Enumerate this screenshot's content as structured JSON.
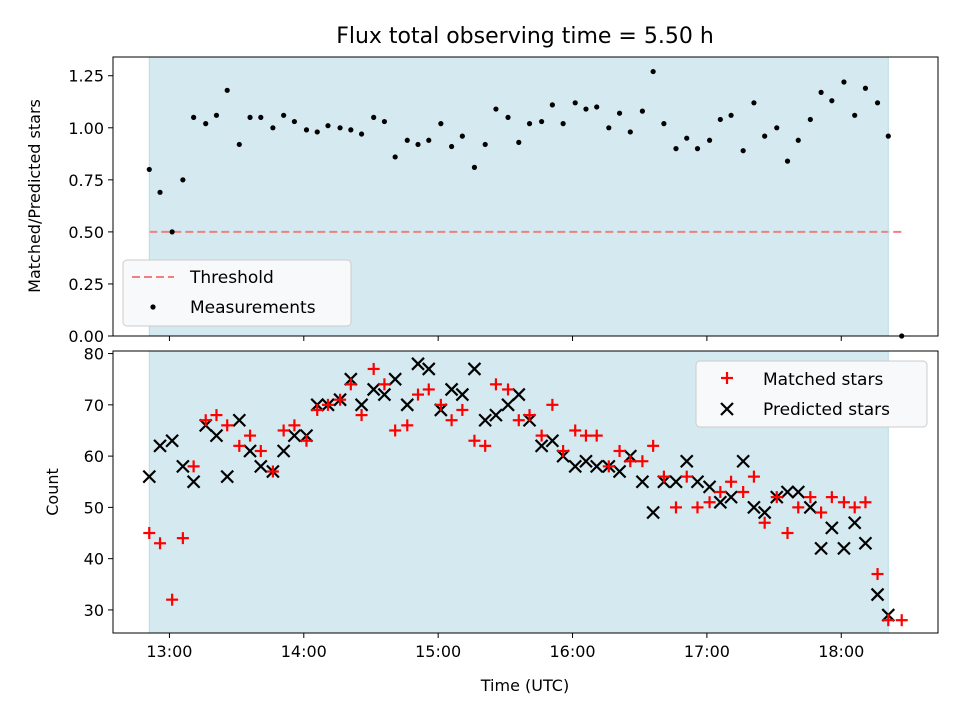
{
  "chart_data": [
    {
      "type": "scatter",
      "title": "Flux total observing time = 5.50 h",
      "xlabel": "",
      "ylabel": "Matched/Predicted stars",
      "ylim": [
        0,
        1.34
      ],
      "yticks": [
        "0.00",
        "0.25",
        "0.50",
        "0.75",
        "1.00",
        "1.25"
      ],
      "shaded_span_hours": [
        12.85,
        18.35
      ],
      "shade_color": "#d4eaf0",
      "legend": {
        "placement": "lower-left",
        "entries": [
          "Threshold",
          "Measurements"
        ]
      },
      "threshold": {
        "name": "Threshold",
        "y": 0.5,
        "x_range_hours": [
          12.85,
          18.45
        ],
        "color": "#f08080"
      },
      "series": [
        {
          "name": "Measurements",
          "color": "#000000",
          "x_hours": [
            12.85,
            12.93,
            13.02,
            13.1,
            13.18,
            13.27,
            13.35,
            13.43,
            13.52,
            13.6,
            13.68,
            13.77,
            13.85,
            13.93,
            14.02,
            14.1,
            14.18,
            14.27,
            14.35,
            14.43,
            14.52,
            14.6,
            14.68,
            14.77,
            14.85,
            14.93,
            15.02,
            15.1,
            15.18,
            15.27,
            15.35,
            15.43,
            15.52,
            15.6,
            15.68,
            15.77,
            15.85,
            15.93,
            16.02,
            16.1,
            16.18,
            16.27,
            16.35,
            16.43,
            16.52,
            16.6,
            16.68,
            16.77,
            16.85,
            16.93,
            17.02,
            17.1,
            17.18,
            17.27,
            17.35,
            17.43,
            17.52,
            17.6,
            17.68,
            17.77,
            17.85,
            17.93,
            18.02,
            18.1,
            18.18,
            18.27,
            18.35,
            18.45
          ],
          "y": [
            0.8,
            0.69,
            0.5,
            0.75,
            1.05,
            1.02,
            1.06,
            1.18,
            0.92,
            1.05,
            1.05,
            1.0,
            1.06,
            1.03,
            0.99,
            0.98,
            1.01,
            1.0,
            0.99,
            0.97,
            1.05,
            1.03,
            0.86,
            0.94,
            0.92,
            0.94,
            1.02,
            0.91,
            0.96,
            0.81,
            0.92,
            1.09,
            1.05,
            0.93,
            1.02,
            1.03,
            1.11,
            1.02,
            1.12,
            1.09,
            1.1,
            1.0,
            1.07,
            0.98,
            1.08,
            1.27,
            1.02,
            0.9,
            0.95,
            0.9,
            0.94,
            1.04,
            1.06,
            0.89,
            1.12,
            0.96,
            1.0,
            0.84,
            0.94,
            1.04,
            1.17,
            1.13,
            1.22,
            1.06,
            1.19,
            1.12,
            0.96,
            0.0
          ]
        }
      ]
    },
    {
      "type": "scatter",
      "title": "",
      "xlabel": "Time (UTC)",
      "ylabel": "Count",
      "ylim": [
        25.5,
        80.5
      ],
      "yticks": [
        "30",
        "40",
        "50",
        "60",
        "70",
        "80"
      ],
      "xticks": [
        "13:00",
        "14:00",
        "15:00",
        "16:00",
        "17:00",
        "18:00"
      ],
      "xlim_hours": [
        12.58,
        18.72
      ],
      "shaded_span_hours": [
        12.85,
        18.35
      ],
      "legend": {
        "placement": "top-right",
        "entries": [
          "Matched stars",
          "Predicted stars"
        ]
      },
      "x_hours": [
        12.85,
        12.93,
        13.02,
        13.1,
        13.18,
        13.27,
        13.35,
        13.43,
        13.52,
        13.6,
        13.68,
        13.77,
        13.85,
        13.93,
        14.02,
        14.1,
        14.18,
        14.27,
        14.35,
        14.43,
        14.52,
        14.6,
        14.68,
        14.77,
        14.85,
        14.93,
        15.02,
        15.1,
        15.18,
        15.27,
        15.35,
        15.43,
        15.52,
        15.6,
        15.68,
        15.77,
        15.85,
        15.93,
        16.02,
        16.1,
        16.18,
        16.27,
        16.35,
        16.43,
        16.52,
        16.6,
        16.68,
        16.77,
        16.85,
        16.93,
        17.02,
        17.1,
        17.18,
        17.27,
        17.35,
        17.43,
        17.52,
        17.6,
        17.68,
        17.77,
        17.85,
        17.93,
        18.02,
        18.1,
        18.18,
        18.27,
        18.35,
        18.45
      ],
      "series": [
        {
          "name": "Matched stars",
          "marker": "plus",
          "color": "#ff0000",
          "y": [
            45,
            43,
            32,
            44,
            58,
            67,
            68,
            66,
            62,
            64,
            61,
            57,
            65,
            66,
            63,
            69,
            70,
            71,
            74,
            68,
            77,
            74,
            65,
            66,
            72,
            73,
            70,
            67,
            69,
            63,
            62,
            74,
            73,
            67,
            68,
            64,
            70,
            61,
            65,
            64,
            64,
            58,
            61,
            59,
            59,
            62,
            56,
            50,
            56,
            50,
            51,
            53,
            55,
            53,
            56,
            47,
            52,
            45,
            50,
            52,
            49,
            52,
            51,
            50,
            51,
            37,
            28,
            28
          ],
          "predicted": [
            56,
            62,
            63,
            58,
            55,
            66,
            64,
            56,
            67,
            61,
            58,
            57,
            61,
            64,
            64,
            70,
            70,
            71,
            75,
            70,
            73,
            72,
            75,
            70,
            78,
            77,
            69,
            73,
            72,
            77,
            67,
            68,
            70,
            72,
            67,
            62,
            63,
            60,
            58,
            59,
            58,
            58,
            57,
            60,
            55,
            49,
            55,
            55,
            59,
            55,
            54,
            51,
            52,
            59,
            50,
            49,
            52,
            53,
            53,
            50,
            42,
            46,
            42,
            47,
            43,
            33,
            29,
            null
          ]
        }
      ]
    }
  ]
}
